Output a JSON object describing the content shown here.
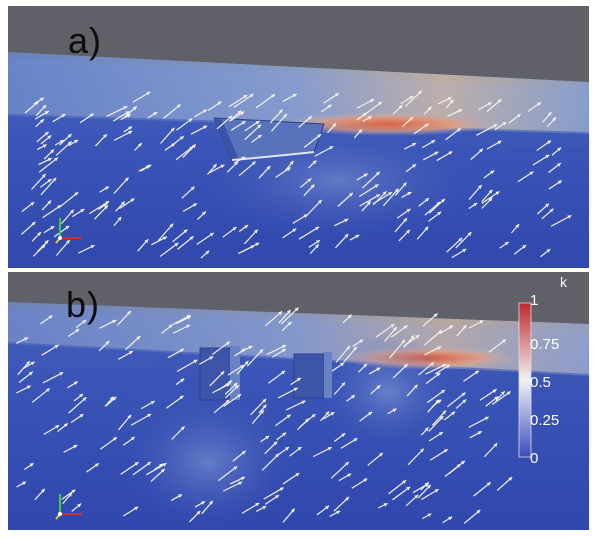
{
  "panels": [
    {
      "label": "a)"
    },
    {
      "label": "b)"
    }
  ],
  "colorbar": {
    "title": "k",
    "ticks": [
      "1",
      "0.75",
      "0.5",
      "0.25",
      "0"
    ],
    "range": [
      0,
      1
    ],
    "colors": {
      "low": "#3b4cc0",
      "mid": "#f2f2f2",
      "high": "#c0282d"
    }
  },
  "icons": {
    "orientation_axes": "xyz-orientation-axes-icon"
  }
}
